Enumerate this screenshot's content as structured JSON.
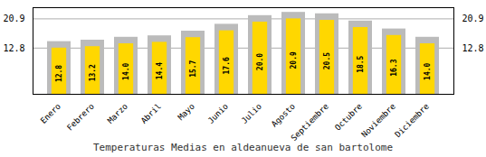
{
  "chart_data": {
    "type": "bar",
    "title": "Temperaturas Medias en aldeanueva de san bartolome",
    "categories": [
      "Enero",
      "Febrero",
      "Marzo",
      "Abril",
      "Mayo",
      "Junio",
      "Julio",
      "Agosto",
      "Septiembre",
      "Octubre",
      "Noviembre",
      "Diciembre"
    ],
    "series": [
      {
        "color": "#BBBBBB",
        "values": [
          14.6,
          15.0,
          15.8,
          16.2,
          17.5,
          19.4,
          21.8,
          22.7,
          22.3,
          20.3,
          18.1,
          15.8
        ]
      },
      {
        "color": "#FFD700",
        "values": [
          12.8,
          13.2,
          14.0,
          14.4,
          15.7,
          17.6,
          20.0,
          20.9,
          20.5,
          18.5,
          16.3,
          14.0
        ],
        "data_labels": true,
        "value_labels": [
          "12.8",
          "13.2",
          "14.0",
          "14.4",
          "15.7",
          "17.6",
          "20.0",
          "20.9",
          "20.5",
          "18.5",
          "16.3",
          "14.0"
        ]
      }
    ],
    "ylim": [
      0,
      24.0
    ],
    "yticks": [
      12.8,
      20.9
    ],
    "grid": true
  }
}
